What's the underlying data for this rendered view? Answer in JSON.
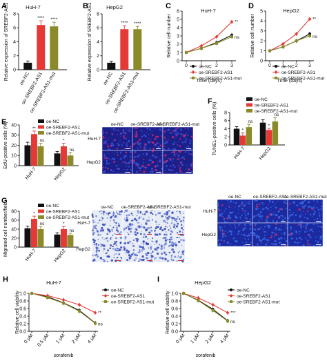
{
  "panels": {
    "A": {
      "letter": "A",
      "title": "HuH-7",
      "ylabel": "Relative expression of SREBF2-AS1",
      "ylim": [
        0,
        8
      ],
      "yticks": [
        "0",
        "2",
        "4",
        "6",
        "8"
      ],
      "categories": [
        "oe-NC",
        "oe-SREBF2-AS1",
        "oe-SREBF2-AS1-mut"
      ],
      "values": [
        1.0,
        6.4,
        6.2
      ],
      "errors": [
        0.25,
        0.6,
        0.6
      ],
      "colors": [
        "#111111",
        "#e53935",
        "#8a8a2a"
      ],
      "sig": [
        "",
        "****",
        "****"
      ]
    },
    "B": {
      "letter": "B",
      "title": "HepG2",
      "ylabel": "Relative expression of SREBF2-AS1",
      "ylim": [
        0,
        8
      ],
      "yticks": [
        "0",
        "2",
        "4",
        "6",
        "8"
      ],
      "categories": [
        "oe-NC",
        "oe-SREBF2-AS1",
        "oe-SREBF2-AS1-mut"
      ],
      "values": [
        1.0,
        5.8,
        5.8
      ],
      "errors": [
        0.2,
        0.5,
        0.4
      ],
      "colors": [
        "#111111",
        "#e53935",
        "#8a8a2a"
      ],
      "sig": [
        "",
        "****",
        "****"
      ]
    },
    "C": {
      "letter": "C",
      "title": "HuH-7",
      "ylabel": "Relative cell number",
      "xlabel": "Time (days)",
      "xticks": [
        "0",
        "1",
        "2",
        "3"
      ],
      "ylim": [
        0,
        6
      ],
      "yticks": [
        "0",
        "1",
        "2",
        "3",
        "4",
        "5",
        "6"
      ],
      "series": [
        {
          "name": "oe-NC",
          "color": "#111111",
          "marker": "circle",
          "values": [
            1.0,
            1.5,
            2.2,
            3.1
          ]
        },
        {
          "name": "oe-SREBF2-AS1",
          "color": "#e53935",
          "marker": "diamond",
          "values": [
            1.0,
            1.8,
            2.9,
            4.7
          ]
        },
        {
          "name": "oe-SREBF2-AS1-mut",
          "color": "#8a8a2a",
          "marker": "square",
          "values": [
            1.0,
            1.5,
            2.1,
            2.9
          ]
        }
      ],
      "sig": [
        "**",
        "ns"
      ]
    },
    "D": {
      "letter": "D",
      "title": "HepG2",
      "ylabel": "Relative cell number",
      "xlabel": "Time (days)",
      "xticks": [
        "0",
        "1",
        "2",
        "3"
      ],
      "ylim": [
        0,
        5
      ],
      "yticks": [
        "0",
        "1",
        "2",
        "3",
        "4",
        "5"
      ],
      "series": [
        {
          "name": "oe-NC",
          "color": "#111111",
          "marker": "circle",
          "values": [
            1.0,
            1.4,
            2.0,
            2.7
          ]
        },
        {
          "name": "oe-SREBF2-AS1",
          "color": "#e53935",
          "marker": "diamond",
          "values": [
            1.0,
            1.7,
            2.7,
            4.2
          ]
        },
        {
          "name": "oe-SREBF2-AS1-mut",
          "color": "#8a8a2a",
          "marker": "square",
          "values": [
            1.0,
            1.4,
            2.0,
            2.5
          ]
        }
      ],
      "sig": [
        "**",
        "ns"
      ]
    },
    "E": {
      "letter": "E",
      "ylabel": "EdU-positive cells (%)",
      "ylim": [
        0,
        40
      ],
      "yticks": [
        "0",
        "10",
        "20",
        "30",
        "40"
      ],
      "groups": [
        "HuH-7",
        "HepG2"
      ],
      "values": [
        [
          20,
          31,
          19
        ],
        [
          12,
          19,
          10
        ]
      ],
      "errors": [
        [
          3,
          3,
          3
        ],
        [
          2,
          3,
          3
        ]
      ],
      "sig": [
        [
          "",
          "**",
          "ns"
        ],
        [
          "",
          "*",
          "ns"
        ]
      ],
      "image_cols": [
        "oe-NC",
        "oe-SREBF2-AS1",
        "oe-SREBF2-AS1-mut"
      ],
      "image_rows": [
        "HuH-7",
        "HepG2"
      ]
    },
    "F": {
      "letter": "F",
      "ylabel": "TUNEL-positive cells (%)",
      "ylim": [
        0,
        8
      ],
      "yticks": [
        "0",
        "2",
        "4",
        "6",
        "8"
      ],
      "groups": [
        "HuH-7",
        "HepG2"
      ],
      "values": [
        [
          4.0,
          2.3,
          4.4
        ],
        [
          5.5,
          3.7,
          5.8
        ]
      ],
      "errors": [
        [
          0.5,
          0.7,
          0.7
        ],
        [
          0.7,
          0.4,
          1.0
        ]
      ],
      "sig": [
        [
          "",
          "*",
          "ns"
        ],
        [
          "",
          "*",
          "ns"
        ]
      ],
      "image_cols": [
        "oe-NC",
        "oe-SREBF2-AS1",
        "oe-SREBF2-AS1-mut"
      ],
      "image_rows": [
        "HuH-7",
        "HepG2"
      ]
    },
    "G": {
      "letter": "G",
      "ylabel": "Migrated cell number/field",
      "ylim": [
        0,
        80
      ],
      "yticks": [
        "0",
        "20",
        "40",
        "60",
        "80"
      ],
      "groups": [
        "HuH-7",
        "HepG2"
      ],
      "values": [
        [
          42,
          63,
          40
        ],
        [
          28,
          40,
          27
        ]
      ],
      "errors": [
        [
          5,
          6,
          6
        ],
        [
          4,
          6,
          4
        ]
      ],
      "sig": [
        [
          "",
          "*",
          "ns"
        ],
        [
          "",
          "*",
          "ns"
        ]
      ],
      "image_cols": [
        "oe-NC",
        "oe-SREBF2-AS1",
        "oe-SREBF2-AS1-mut"
      ],
      "image_rows": [
        "HuH-7",
        "HepG2"
      ]
    },
    "H": {
      "letter": "H",
      "title": "HuH-7",
      "ylabel": "Relative cell viability",
      "xlabel": "sorafenib",
      "xticks": [
        "0 μM",
        "0.5 μM",
        "1 μM",
        "2 μM",
        "4 μM"
      ],
      "ylim": [
        0,
        1.0
      ],
      "yticks": [
        "0.0",
        "0.2",
        "0.4",
        "0.6",
        "0.8",
        "1.0"
      ],
      "series": [
        {
          "name": "oe-NC",
          "color": "#111111",
          "marker": "circle",
          "values": [
            1.0,
            0.91,
            0.75,
            0.55,
            0.22
          ]
        },
        {
          "name": "oe-SREBF2-AS1",
          "color": "#e53935",
          "marker": "diamond",
          "values": [
            1.0,
            0.94,
            0.83,
            0.7,
            0.49
          ]
        },
        {
          "name": "oe-SREBF2-AS1-mut",
          "color": "#8a8a2a",
          "marker": "square",
          "values": [
            1.0,
            0.89,
            0.74,
            0.53,
            0.21
          ]
        }
      ],
      "sig": [
        "**",
        "ns"
      ]
    },
    "I": {
      "letter": "I",
      "title": "HepG2",
      "ylabel": "Relative cell viability",
      "xlabel": "sorafenib",
      "xticks": [
        "0 μM",
        "1 μM",
        "2 μM",
        "4 μM"
      ],
      "ylim": [
        0,
        1.0
      ],
      "yticks": [
        "0.0",
        "0.2",
        "0.4",
        "0.6",
        "0.8",
        "1.0"
      ],
      "series": [
        {
          "name": "oe-NC",
          "color": "#111111",
          "marker": "circle",
          "values": [
            1.0,
            0.82,
            0.58,
            0.28
          ]
        },
        {
          "name": "oe-SREBF2-AS1",
          "color": "#e53935",
          "marker": "diamond",
          "values": [
            1.0,
            0.88,
            0.7,
            0.49
          ]
        },
        {
          "name": "oe-SREBF2-AS1-mut",
          "color": "#8a8a2a",
          "marker": "square",
          "values": [
            1.0,
            0.81,
            0.55,
            0.27
          ]
        }
      ],
      "sig": [
        "***",
        "ns"
      ]
    }
  },
  "legend": [
    "oe-NC",
    "oe-SREBF2-AS1",
    "oe-SREBF2-AS1-mut"
  ],
  "colors": {
    "nc": "#111111",
    "as1": "#e53935",
    "mut": "#8a8a2a"
  },
  "chart_data": [
    {
      "type": "bar",
      "panel": "A",
      "title": "HuH-7",
      "ylabel": "Relative expression of SREBF2-AS1",
      "categories": [
        "oe-NC",
        "oe-SREBF2-AS1",
        "oe-SREBF2-AS1-mut"
      ],
      "values": [
        1.0,
        6.4,
        6.2
      ],
      "ylim": [
        0,
        8
      ]
    },
    {
      "type": "bar",
      "panel": "B",
      "title": "HepG2",
      "ylabel": "Relative expression of SREBF2-AS1",
      "categories": [
        "oe-NC",
        "oe-SREBF2-AS1",
        "oe-SREBF2-AS1-mut"
      ],
      "values": [
        1.0,
        5.8,
        5.8
      ],
      "ylim": [
        0,
        8
      ]
    },
    {
      "type": "line",
      "panel": "C",
      "title": "HuH-7",
      "xlabel": "Time (days)",
      "ylabel": "Relative cell number",
      "x": [
        0,
        1,
        2,
        3
      ],
      "series": [
        {
          "name": "oe-NC",
          "values": [
            1.0,
            1.5,
            2.2,
            3.1
          ]
        },
        {
          "name": "oe-SREBF2-AS1",
          "values": [
            1.0,
            1.8,
            2.9,
            4.7
          ]
        },
        {
          "name": "oe-SREBF2-AS1-mut",
          "values": [
            1.0,
            1.5,
            2.1,
            2.9
          ]
        }
      ],
      "ylim": [
        0,
        6
      ]
    },
    {
      "type": "line",
      "panel": "D",
      "title": "HepG2",
      "xlabel": "Time (days)",
      "ylabel": "Relative cell number",
      "x": [
        0,
        1,
        2,
        3
      ],
      "series": [
        {
          "name": "oe-NC",
          "values": [
            1.0,
            1.4,
            2.0,
            2.7
          ]
        },
        {
          "name": "oe-SREBF2-AS1",
          "values": [
            1.0,
            1.7,
            2.7,
            4.2
          ]
        },
        {
          "name": "oe-SREBF2-AS1-mut",
          "values": [
            1.0,
            1.4,
            2.0,
            2.5
          ]
        }
      ],
      "ylim": [
        0,
        5
      ]
    },
    {
      "type": "bar",
      "panel": "E",
      "ylabel": "EdU-positive cells (%)",
      "categories": [
        "HuH-7",
        "HepG2"
      ],
      "series": [
        {
          "name": "oe-NC",
          "values": [
            20,
            12
          ]
        },
        {
          "name": "oe-SREBF2-AS1",
          "values": [
            31,
            19
          ]
        },
        {
          "name": "oe-SREBF2-AS1-mut",
          "values": [
            19,
            10
          ]
        }
      ],
      "ylim": [
        0,
        40
      ]
    },
    {
      "type": "bar",
      "panel": "F",
      "ylabel": "TUNEL-positive cells (%)",
      "categories": [
        "HuH-7",
        "HepG2"
      ],
      "series": [
        {
          "name": "oe-NC",
          "values": [
            4.0,
            5.5
          ]
        },
        {
          "name": "oe-SREBF2-AS1",
          "values": [
            2.3,
            3.7
          ]
        },
        {
          "name": "oe-SREBF2-AS1-mut",
          "values": [
            4.4,
            5.8
          ]
        }
      ],
      "ylim": [
        0,
        8
      ]
    },
    {
      "type": "bar",
      "panel": "G",
      "ylabel": "Migrated cell number/field",
      "categories": [
        "HuH-7",
        "HepG2"
      ],
      "series": [
        {
          "name": "oe-NC",
          "values": [
            42,
            28
          ]
        },
        {
          "name": "oe-SREBF2-AS1",
          "values": [
            63,
            40
          ]
        },
        {
          "name": "oe-SREBF2-AS1-mut",
          "values": [
            40,
            27
          ]
        }
      ],
      "ylim": [
        0,
        80
      ]
    },
    {
      "type": "line",
      "panel": "H",
      "title": "HuH-7",
      "xlabel": "sorafenib",
      "ylabel": "Relative cell viability",
      "x": [
        "0 μM",
        "0.5 μM",
        "1 μM",
        "2 μM",
        "4 μM"
      ],
      "series": [
        {
          "name": "oe-NC",
          "values": [
            1.0,
            0.91,
            0.75,
            0.55,
            0.22
          ]
        },
        {
          "name": "oe-SREBF2-AS1",
          "values": [
            1.0,
            0.94,
            0.83,
            0.7,
            0.49
          ]
        },
        {
          "name": "oe-SREBF2-AS1-mut",
          "values": [
            1.0,
            0.89,
            0.74,
            0.53,
            0.21
          ]
        }
      ],
      "ylim": [
        0,
        1.0
      ]
    },
    {
      "type": "line",
      "panel": "I",
      "title": "HepG2",
      "xlabel": "sorafenib",
      "ylabel": "Relative cell viability",
      "x": [
        "0 μM",
        "1 μM",
        "2 μM",
        "4 μM"
      ],
      "series": [
        {
          "name": "oe-NC",
          "values": [
            1.0,
            0.82,
            0.58,
            0.28
          ]
        },
        {
          "name": "oe-SREBF2-AS1",
          "values": [
            1.0,
            0.88,
            0.7,
            0.49
          ]
        },
        {
          "name": "oe-SREBF2-AS1-mut",
          "values": [
            1.0,
            0.81,
            0.55,
            0.27
          ]
        }
      ],
      "ylim": [
        0,
        1.0
      ]
    }
  ]
}
